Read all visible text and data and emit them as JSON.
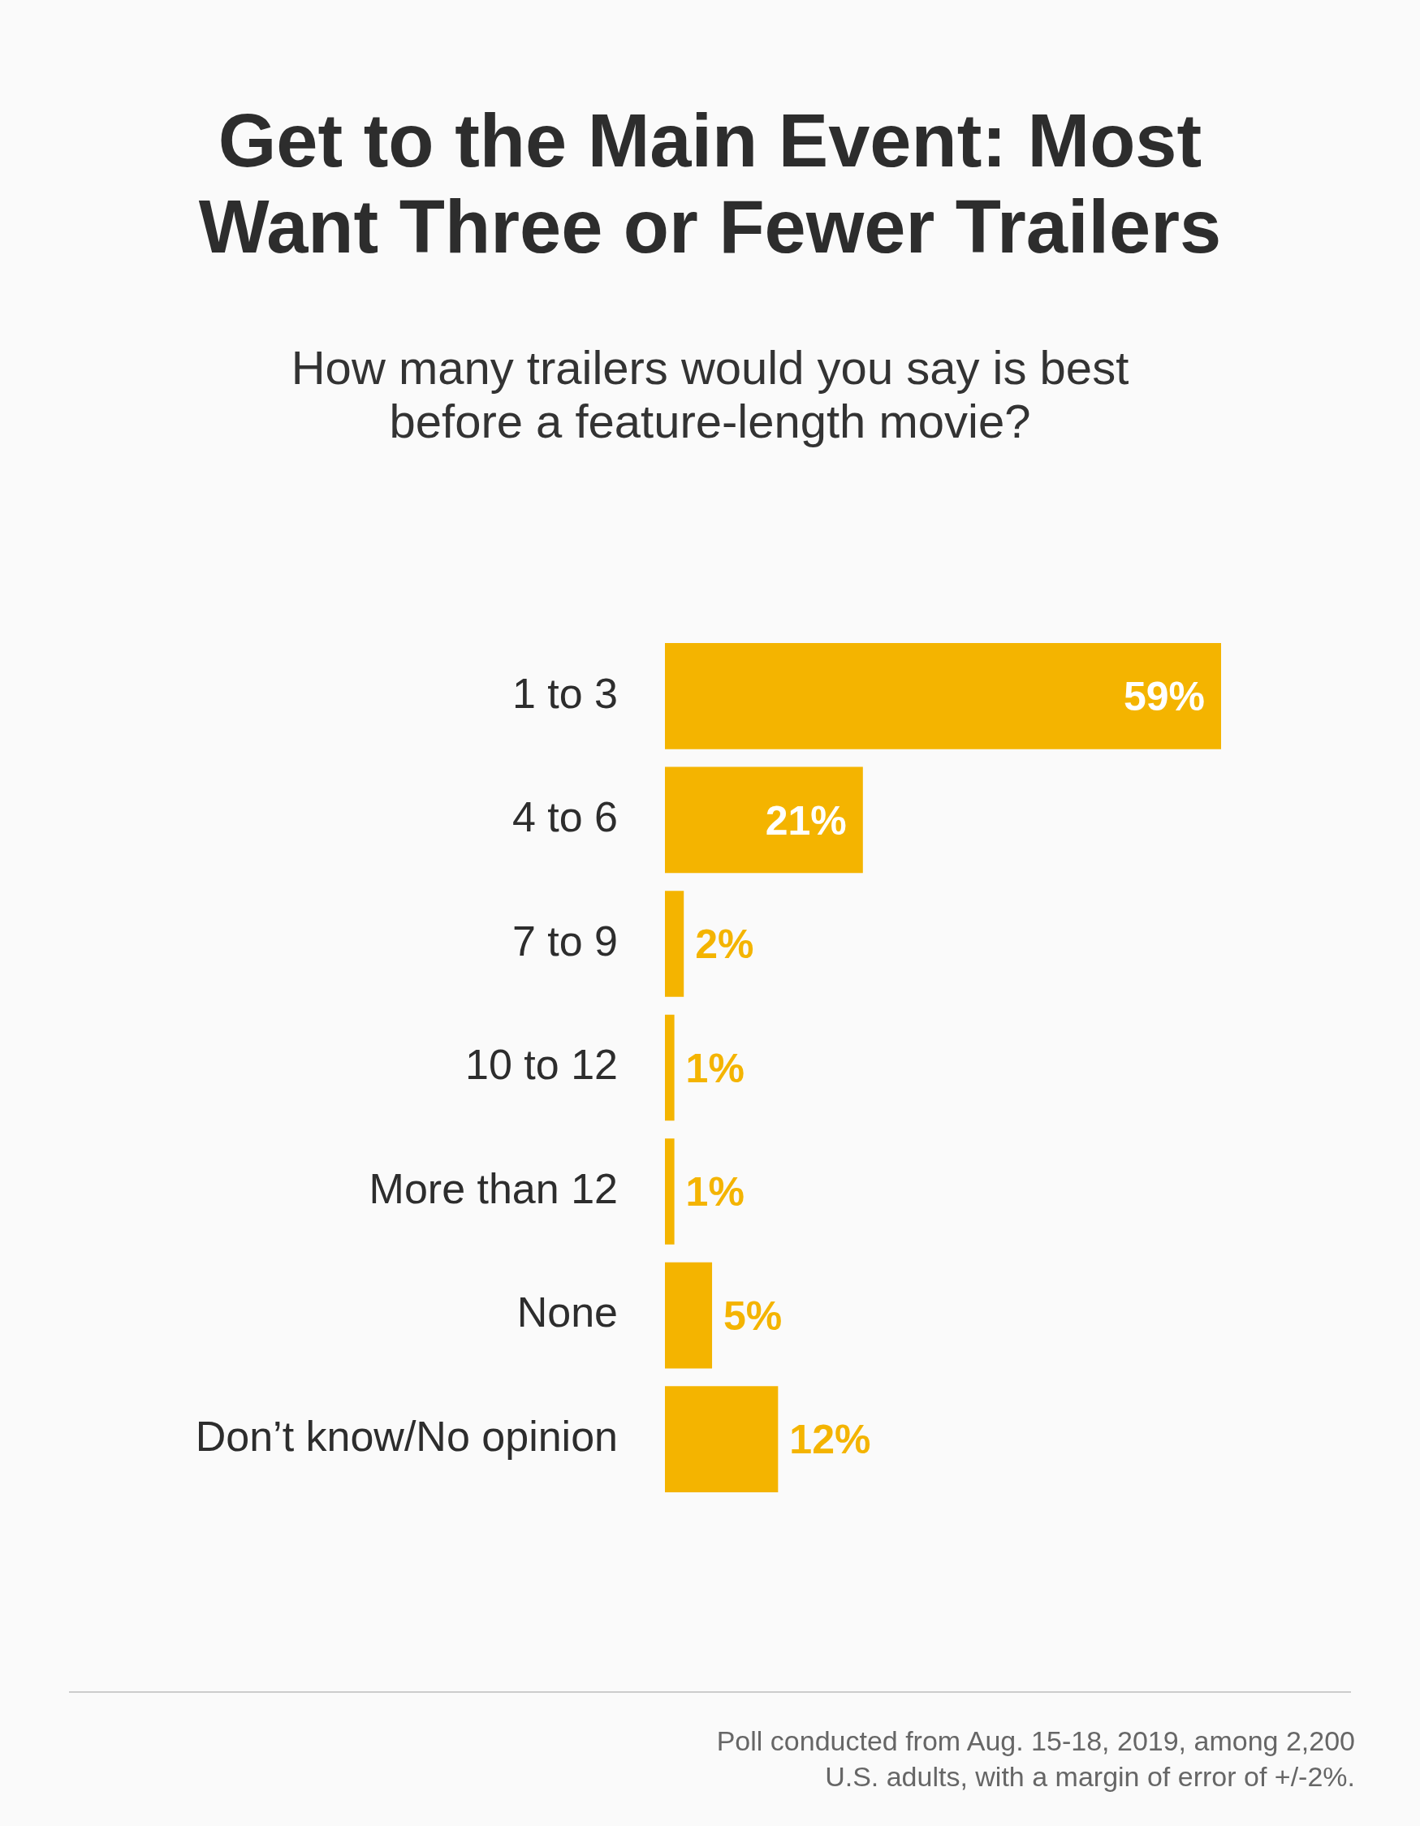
{
  "chart_data": {
    "type": "bar",
    "orientation": "horizontal",
    "title": "Get to the Main Event: Most Want Three or Fewer Trailers",
    "subtitle": "How many trailers would you say is best before a feature-length movie?",
    "categories": [
      "1 to 3",
      "4 to 6",
      "7 to 9",
      "10 to 12",
      "More than 12",
      "None",
      "Don’t know/No opinion"
    ],
    "values": [
      59,
      21,
      2,
      1,
      1,
      5,
      12
    ],
    "value_labels": [
      "59%",
      "21%",
      "2%",
      "1%",
      "1%",
      "5%",
      "12%"
    ],
    "color": "#f4b400",
    "annotations": [
      "Poll conducted from Aug. 15-18, 2019, among 2,200 U.S. adults, with a margin of error of +/-2%."
    ],
    "legend": false
  }
}
